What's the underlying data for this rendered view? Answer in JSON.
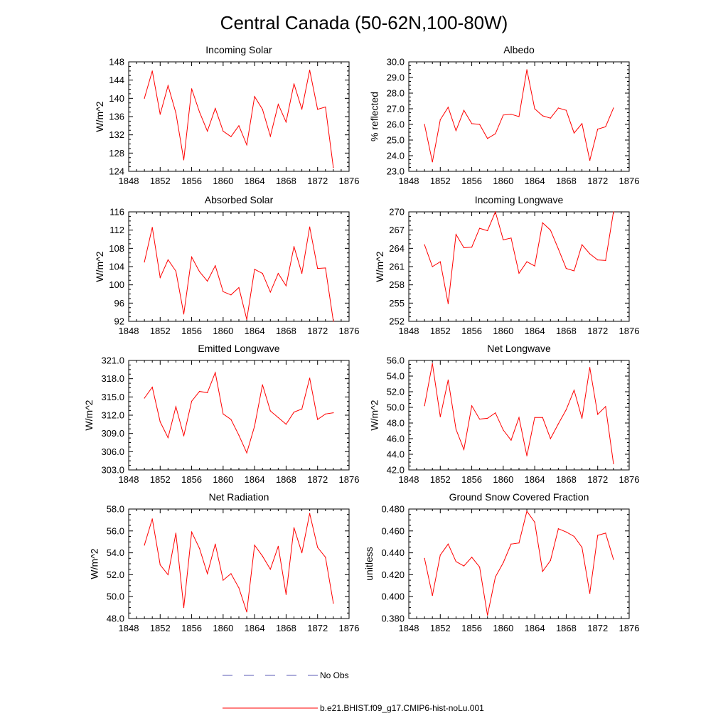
{
  "figure": {
    "title": "Central Canada (50-62N,100-80W)",
    "legend": [
      {
        "label": "No Obs",
        "color": "#5a5ab4",
        "dash": "dashed"
      },
      {
        "label": "b.e21.BHIST.f09_g17.CMIP6-hist-noLu.001",
        "color": "#ff0000",
        "dash": "solid"
      }
    ]
  },
  "chart_data": [
    {
      "type": "line",
      "title": "Incoming Solar",
      "ylabel": "W/m^2",
      "xlim": [
        1848,
        1876
      ],
      "ylim": [
        124,
        148
      ],
      "yticks": [
        "124",
        "128",
        "132",
        "136",
        "140",
        "144",
        "148"
      ],
      "xticks": [
        "1848",
        "1852",
        "1856",
        "1860",
        "1864",
        "1868",
        "1872",
        "1876"
      ],
      "series": [
        {
          "color": "#ff0000",
          "x": [
            1850,
            1851,
            1852,
            1853,
            1854,
            1855,
            1856,
            1857,
            1858,
            1859,
            1860,
            1861,
            1862,
            1863,
            1864,
            1865,
            1866,
            1867,
            1868,
            1869,
            1870,
            1871,
            1872,
            1873,
            1874
          ],
          "values": [
            140.0,
            146.0,
            136.5,
            142.8,
            136.8,
            126.5,
            142.1,
            137.0,
            132.8,
            137.8,
            132.8,
            131.6,
            134.0,
            129.8,
            140.4,
            137.6,
            131.7,
            138.7,
            134.8,
            143.2,
            137.6,
            146.2,
            137.6,
            138.1,
            124.8
          ]
        }
      ]
    },
    {
      "type": "line",
      "title": "Albedo",
      "ylabel": "% reflected",
      "xlim": [
        1848,
        1876
      ],
      "ylim": [
        23.0,
        30.0
      ],
      "yticks": [
        "23.0",
        "24.0",
        "25.0",
        "26.0",
        "27.0",
        "28.0",
        "29.0",
        "30.0"
      ],
      "xticks": [
        "1848",
        "1852",
        "1856",
        "1860",
        "1864",
        "1868",
        "1872",
        "1876"
      ],
      "series": [
        {
          "color": "#ff0000",
          "x": [
            1850,
            1851,
            1852,
            1853,
            1854,
            1855,
            1856,
            1857,
            1858,
            1859,
            1860,
            1861,
            1862,
            1863,
            1864,
            1865,
            1866,
            1867,
            1868,
            1869,
            1870,
            1871,
            1872,
            1873,
            1874
          ],
          "values": [
            26.0,
            23.6,
            26.3,
            27.1,
            25.6,
            26.9,
            26.05,
            26.0,
            25.1,
            25.4,
            26.6,
            26.65,
            26.5,
            29.5,
            27.0,
            26.55,
            26.4,
            27.05,
            26.9,
            25.45,
            26.05,
            23.7,
            25.7,
            25.85,
            27.05
          ]
        }
      ]
    },
    {
      "type": "line",
      "title": "Absorbed Solar",
      "ylabel": "W/m^2",
      "xlim": [
        1848,
        1876
      ],
      "ylim": [
        92,
        116
      ],
      "yticks": [
        "92",
        "96",
        "100",
        "104",
        "108",
        "112",
        "116"
      ],
      "xticks": [
        "1848",
        "1852",
        "1856",
        "1860",
        "1864",
        "1868",
        "1872",
        "1876"
      ],
      "series": [
        {
          "color": "#ff0000",
          "x": [
            1850,
            1851,
            1852,
            1853,
            1854,
            1855,
            1856,
            1857,
            1858,
            1859,
            1860,
            1861,
            1862,
            1863,
            1864,
            1865,
            1866,
            1867,
            1868,
            1869,
            1870,
            1871,
            1872,
            1873,
            1874
          ],
          "values": [
            105.0,
            112.6,
            101.6,
            105.5,
            103.0,
            93.6,
            106.1,
            102.9,
            100.8,
            104.2,
            98.5,
            97.8,
            99.4,
            92.4,
            103.4,
            102.5,
            98.4,
            102.5,
            99.8,
            108.4,
            102.5,
            112.7,
            103.6,
            103.7,
            92.0
          ]
        }
      ]
    },
    {
      "type": "line",
      "title": "Incoming Longwave",
      "ylabel": "W/m^2",
      "xlim": [
        1848,
        1876
      ],
      "ylim": [
        252,
        270
      ],
      "yticks": [
        "252",
        "255",
        "258",
        "261",
        "264",
        "267",
        "270"
      ],
      "xticks": [
        "1848",
        "1852",
        "1856",
        "1860",
        "1864",
        "1868",
        "1872",
        "1876"
      ],
      "series": [
        {
          "color": "#ff0000",
          "x": [
            1850,
            1851,
            1852,
            1853,
            1854,
            1855,
            1856,
            1857,
            1858,
            1859,
            1860,
            1861,
            1862,
            1863,
            1864,
            1865,
            1866,
            1867,
            1868,
            1869,
            1870,
            1871,
            1872,
            1873,
            1874
          ],
          "values": [
            264.6,
            261.0,
            261.8,
            254.9,
            266.3,
            264.1,
            264.2,
            267.3,
            266.9,
            270.0,
            265.4,
            265.7,
            259.9,
            261.8,
            261.1,
            268.2,
            267.0,
            263.9,
            260.7,
            260.3,
            264.6,
            263.1,
            262.1,
            262.0,
            270.0
          ]
        }
      ]
    },
    {
      "type": "line",
      "title": "Emitted Longwave",
      "ylabel": "W/m^2",
      "xlim": [
        1848,
        1876
      ],
      "ylim": [
        303.0,
        321.0
      ],
      "yticks": [
        "303.0",
        "306.0",
        "309.0",
        "312.0",
        "315.0",
        "318.0",
        "321.0"
      ],
      "xticks": [
        "1848",
        "1852",
        "1856",
        "1860",
        "1864",
        "1868",
        "1872",
        "1876"
      ],
      "series": [
        {
          "color": "#ff0000",
          "x": [
            1850,
            1851,
            1852,
            1853,
            1854,
            1855,
            1856,
            1857,
            1858,
            1859,
            1860,
            1861,
            1862,
            1863,
            1864,
            1865,
            1866,
            1867,
            1868,
            1869,
            1870,
            1871,
            1872,
            1873,
            1874
          ],
          "values": [
            314.8,
            316.6,
            310.9,
            308.3,
            313.4,
            308.6,
            314.3,
            315.9,
            315.7,
            319.0,
            312.2,
            311.3,
            308.7,
            305.8,
            310.2,
            317.0,
            312.7,
            311.6,
            310.5,
            312.5,
            313.0,
            318.1,
            311.3,
            312.2,
            312.4
          ]
        }
      ]
    },
    {
      "type": "line",
      "title": "Net Longwave",
      "ylabel": "W/m^2",
      "xlim": [
        1848,
        1876
      ],
      "ylim": [
        42.0,
        56.0
      ],
      "yticks": [
        "42.0",
        "44.0",
        "46.0",
        "48.0",
        "50.0",
        "52.0",
        "54.0",
        "56.0"
      ],
      "xticks": [
        "1848",
        "1852",
        "1856",
        "1860",
        "1864",
        "1868",
        "1872",
        "1876"
      ],
      "series": [
        {
          "color": "#ff0000",
          "x": [
            1850,
            1851,
            1852,
            1853,
            1854,
            1855,
            1856,
            1857,
            1858,
            1859,
            1860,
            1861,
            1862,
            1863,
            1864,
            1865,
            1866,
            1867,
            1868,
            1869,
            1870,
            1871,
            1872,
            1873,
            1874
          ],
          "values": [
            50.2,
            55.6,
            48.8,
            53.5,
            47.2,
            44.6,
            50.2,
            48.5,
            48.6,
            49.3,
            47.1,
            45.8,
            48.7,
            43.8,
            48.7,
            48.7,
            46.0,
            47.9,
            49.7,
            52.2,
            48.6,
            55.1,
            49.1,
            50.1,
            42.8
          ]
        }
      ]
    },
    {
      "type": "line",
      "title": "Net Radiation",
      "ylabel": "W/m^2",
      "xlim": [
        1848,
        1876
      ],
      "ylim": [
        48.0,
        58.0
      ],
      "yticks": [
        "48.0",
        "50.0",
        "52.0",
        "54.0",
        "56.0",
        "58.0"
      ],
      "xticks": [
        "1848",
        "1852",
        "1856",
        "1860",
        "1864",
        "1868",
        "1872",
        "1876"
      ],
      "series": [
        {
          "color": "#ff0000",
          "x": [
            1850,
            1851,
            1852,
            1853,
            1854,
            1855,
            1856,
            1857,
            1858,
            1859,
            1860,
            1861,
            1862,
            1863,
            1864,
            1865,
            1866,
            1867,
            1868,
            1869,
            1870,
            1871,
            1872,
            1873,
            1874
          ],
          "values": [
            54.7,
            57.1,
            52.9,
            52.0,
            55.8,
            49.0,
            55.9,
            54.4,
            52.1,
            54.8,
            51.5,
            52.1,
            50.8,
            48.6,
            54.7,
            53.7,
            52.5,
            54.6,
            50.2,
            56.3,
            54.0,
            57.6,
            54.5,
            53.6,
            49.4
          ]
        }
      ]
    },
    {
      "type": "line",
      "title": "Ground Snow Covered Fraction",
      "ylabel": "unitless",
      "xlim": [
        1848,
        1876
      ],
      "ylim": [
        0.38,
        0.48
      ],
      "yticks": [
        "0.380",
        "0.400",
        "0.420",
        "0.440",
        "0.460",
        "0.480"
      ],
      "xticks": [
        "1848",
        "1852",
        "1856",
        "1860",
        "1864",
        "1868",
        "1872",
        "1876"
      ],
      "series": [
        {
          "color": "#ff0000",
          "x": [
            1850,
            1851,
            1852,
            1853,
            1854,
            1855,
            1856,
            1857,
            1858,
            1859,
            1860,
            1861,
            1862,
            1863,
            1864,
            1865,
            1866,
            1867,
            1868,
            1869,
            1870,
            1871,
            1872,
            1873,
            1874
          ],
          "values": [
            0.435,
            0.401,
            0.438,
            0.448,
            0.432,
            0.428,
            0.436,
            0.427,
            0.383,
            0.418,
            0.431,
            0.448,
            0.449,
            0.478,
            0.468,
            0.423,
            0.433,
            0.462,
            0.459,
            0.455,
            0.445,
            0.403,
            0.456,
            0.458,
            0.434
          ]
        }
      ]
    }
  ]
}
